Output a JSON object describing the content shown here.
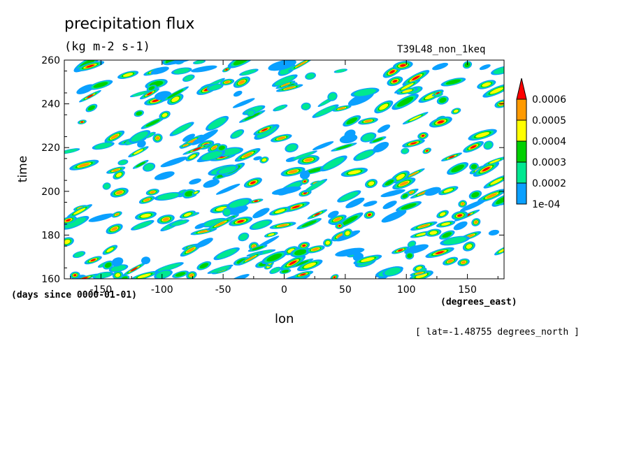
{
  "chart_data": {
    "type": "heatmap",
    "title": "precipitation flux",
    "units": "(kg m-2 s-1)",
    "experiment": "T39L48_non_1keq",
    "xlabel": "lon",
    "ylabel": "time",
    "x_units_label": "(degrees_east)",
    "y_units_label": "(days since 0000-01-01)",
    "slice_note": "[ lat=-1.48755 degrees_north ]",
    "xlim": [
      -180,
      180
    ],
    "ylim": [
      160,
      260
    ],
    "x_ticks": [
      -150,
      -100,
      -50,
      0,
      50,
      100,
      150
    ],
    "y_ticks": [
      160,
      180,
      200,
      220,
      240,
      260
    ],
    "x_tick_labels": [
      "-150",
      "-100",
      "-50",
      "0",
      "50",
      "100",
      "150"
    ],
    "y_tick_labels": [
      "160",
      "180",
      "200",
      "220",
      "240",
      "260"
    ],
    "colorbar": {
      "levels": [
        0.0001,
        0.0002,
        0.0003,
        0.0004,
        0.0005,
        0.0006
      ],
      "level_labels": [
        "1e-04",
        "0.0002",
        "0.0003",
        "0.0004",
        "0.0005",
        "0.0006"
      ],
      "colors": [
        "#0aa0ff",
        "#00e890",
        "#00d000",
        "#ffff00",
        "#ff9a00",
        "#ff0000"
      ],
      "extend": "max"
    },
    "grid": false
  }
}
